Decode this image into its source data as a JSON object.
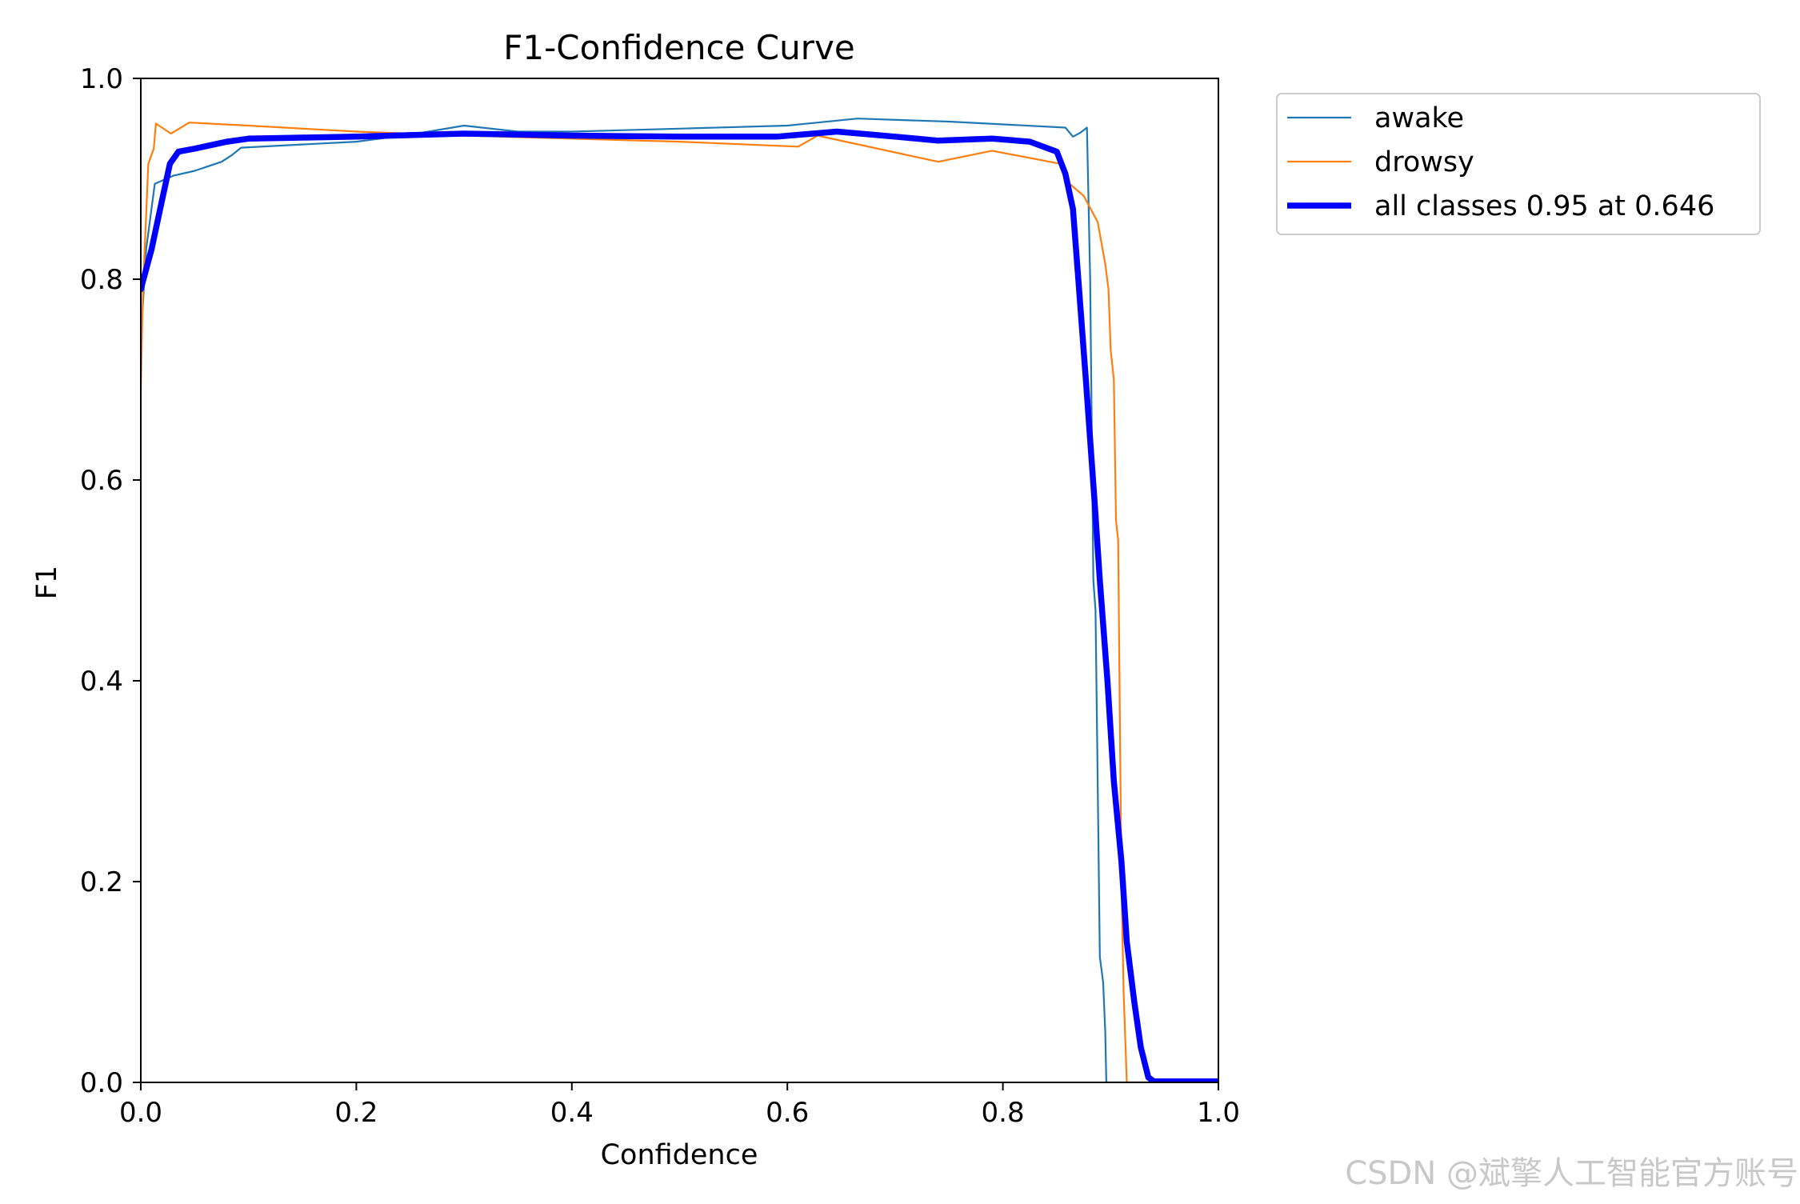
{
  "chart_data": {
    "type": "line",
    "title": "F1-Confidence Curve",
    "xlabel": "Confidence",
    "ylabel": "F1",
    "xlim": [
      0,
      1
    ],
    "ylim": [
      0,
      1
    ],
    "xticks": [
      "0.0",
      "0.2",
      "0.4",
      "0.6",
      "0.8",
      "1.0"
    ],
    "yticks": [
      "0.0",
      "0.2",
      "0.4",
      "0.6",
      "0.8",
      "1.0"
    ],
    "grid": false,
    "legend_position": "outside-top-right",
    "series": [
      {
        "name": "awake",
        "color": "#1f77b4",
        "width": "thin",
        "points": [
          [
            0.0,
            0.74
          ],
          [
            0.005,
            0.83
          ],
          [
            0.013,
            0.895
          ],
          [
            0.03,
            0.903
          ],
          [
            0.05,
            0.908
          ],
          [
            0.075,
            0.917
          ],
          [
            0.085,
            0.924
          ],
          [
            0.093,
            0.931
          ],
          [
            0.2,
            0.937
          ],
          [
            0.25,
            0.944
          ],
          [
            0.3,
            0.953
          ],
          [
            0.35,
            0.947
          ],
          [
            0.4,
            0.947
          ],
          [
            0.5,
            0.95
          ],
          [
            0.6,
            0.953
          ],
          [
            0.665,
            0.96
          ],
          [
            0.75,
            0.957
          ],
          [
            0.858,
            0.951
          ],
          [
            0.865,
            0.942
          ],
          [
            0.872,
            0.946
          ],
          [
            0.878,
            0.951
          ],
          [
            0.881,
            0.8
          ],
          [
            0.884,
            0.5
          ],
          [
            0.886,
            0.47
          ],
          [
            0.888,
            0.3
          ],
          [
            0.89,
            0.125
          ],
          [
            0.893,
            0.1
          ],
          [
            0.895,
            0.05
          ],
          [
            0.896,
            0.0
          ],
          [
            1.0,
            0.0
          ]
        ]
      },
      {
        "name": "drowsy",
        "color": "#ff7f0e",
        "width": "thin",
        "points": [
          [
            0.0,
            0.69
          ],
          [
            0.002,
            0.79
          ],
          [
            0.007,
            0.915
          ],
          [
            0.012,
            0.93
          ],
          [
            0.014,
            0.955
          ],
          [
            0.028,
            0.945
          ],
          [
            0.045,
            0.956
          ],
          [
            0.1,
            0.953
          ],
          [
            0.2,
            0.947
          ],
          [
            0.3,
            0.943
          ],
          [
            0.4,
            0.94
          ],
          [
            0.5,
            0.937
          ],
          [
            0.61,
            0.932
          ],
          [
            0.628,
            0.943
          ],
          [
            0.74,
            0.917
          ],
          [
            0.79,
            0.928
          ],
          [
            0.853,
            0.915
          ],
          [
            0.862,
            0.895
          ],
          [
            0.875,
            0.883
          ],
          [
            0.888,
            0.857
          ],
          [
            0.895,
            0.815
          ],
          [
            0.898,
            0.79
          ],
          [
            0.9,
            0.73
          ],
          [
            0.903,
            0.7
          ],
          [
            0.905,
            0.56
          ],
          [
            0.907,
            0.54
          ],
          [
            0.91,
            0.2
          ],
          [
            0.912,
            0.09
          ],
          [
            0.915,
            0.0
          ],
          [
            1.0,
            0.0
          ]
        ]
      },
      {
        "name": "all classes 0.95 at 0.646",
        "color": "#0000ff",
        "width": "thick",
        "points": [
          [
            0.0,
            0.79
          ],
          [
            0.01,
            0.83
          ],
          [
            0.02,
            0.88
          ],
          [
            0.027,
            0.915
          ],
          [
            0.035,
            0.927
          ],
          [
            0.05,
            0.93
          ],
          [
            0.08,
            0.937
          ],
          [
            0.1,
            0.94
          ],
          [
            0.15,
            0.941
          ],
          [
            0.2,
            0.942
          ],
          [
            0.3,
            0.945
          ],
          [
            0.4,
            0.943
          ],
          [
            0.5,
            0.942
          ],
          [
            0.59,
            0.942
          ],
          [
            0.646,
            0.947
          ],
          [
            0.7,
            0.942
          ],
          [
            0.74,
            0.938
          ],
          [
            0.79,
            0.94
          ],
          [
            0.825,
            0.937
          ],
          [
            0.85,
            0.927
          ],
          [
            0.858,
            0.905
          ],
          [
            0.865,
            0.87
          ],
          [
            0.87,
            0.8
          ],
          [
            0.877,
            0.7
          ],
          [
            0.885,
            0.58
          ],
          [
            0.89,
            0.5
          ],
          [
            0.897,
            0.4
          ],
          [
            0.903,
            0.3
          ],
          [
            0.91,
            0.22
          ],
          [
            0.915,
            0.14
          ],
          [
            0.922,
            0.08
          ],
          [
            0.928,
            0.035
          ],
          [
            0.935,
            0.005
          ],
          [
            0.94,
            0.001
          ],
          [
            1.0,
            0.001
          ]
        ]
      }
    ]
  },
  "watermark": "CSDN @斌擎人工智能官方账号"
}
